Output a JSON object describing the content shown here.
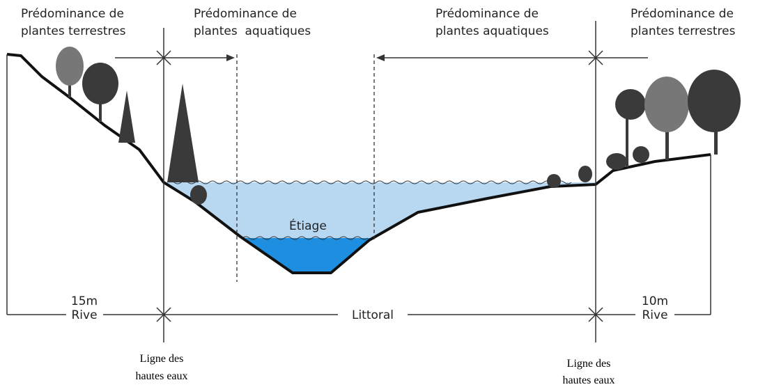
{
  "zones": [
    [
      "Prédominance de",
      "plantes terrestres"
    ],
    [
      "Prédominance de",
      "plantes  aquatiques"
    ],
    [
      "Prédominance de",
      "plantes aquatiques"
    ],
    [
      "Prédominance de",
      "plantes terrestres"
    ]
  ],
  "etiage": "Étiage",
  "left_width": "15m",
  "left_label": "Rive",
  "littoral": "Littoral",
  "right_width": "10m",
  "right_label": "Rive",
  "high_water": [
    [
      "Ligne des",
      "hautes eaux"
    ],
    [
      "Ligne des",
      "hautes eaux"
    ]
  ]
}
